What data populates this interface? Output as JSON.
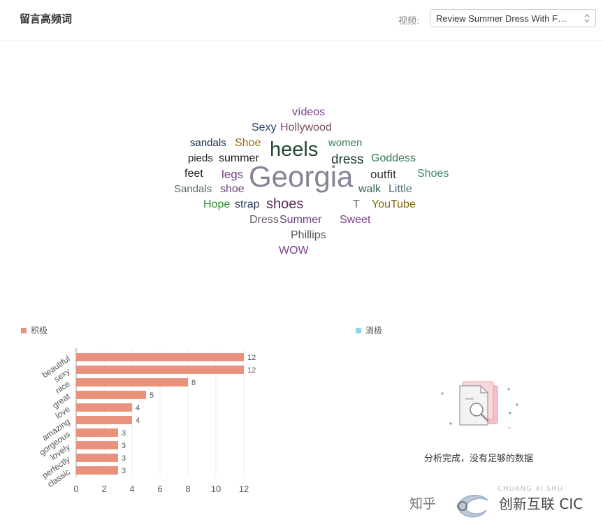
{
  "header": {
    "title": "留言高频词",
    "video_label": "视频:",
    "video_selected": "Review Summer Dress With F…"
  },
  "word_cloud": [
    {
      "text": "vídeos",
      "color": "#7b3f8c"
    },
    {
      "text": "Sexy",
      "color": "#2b3a67"
    },
    {
      "text": "Hollywood",
      "color": "#7a4b63"
    },
    {
      "text": "sandals",
      "color": "#1a2a4a"
    },
    {
      "text": "Shoe",
      "color": "#9a6b10"
    },
    {
      "text": "heels",
      "color": "#244a30"
    },
    {
      "text": "women",
      "color": "#3e7a52"
    },
    {
      "text": "pieds",
      "color": "#222222"
    },
    {
      "text": "summer",
      "color": "#1a1a1a"
    },
    {
      "text": "dress",
      "color": "#153a24"
    },
    {
      "text": "Goddess",
      "color": "#357a52"
    },
    {
      "text": "feet",
      "color": "#222222"
    },
    {
      "text": "legs",
      "color": "#7b3f8c"
    },
    {
      "text": "Georgia",
      "color": "#8a8296"
    },
    {
      "text": "outfit",
      "color": "#333333"
    },
    {
      "text": "Shoes",
      "color": "#3e8a70"
    },
    {
      "text": "Sandals",
      "color": "#5a6a6a"
    },
    {
      "text": "shoe",
      "color": "#6a3f7a"
    },
    {
      "text": "walk",
      "color": "#35665a"
    },
    {
      "text": "Little",
      "color": "#4f6e78"
    },
    {
      "text": "Hope",
      "color": "#2e8a2e"
    },
    {
      "text": "strap",
      "color": "#2b3a5a"
    },
    {
      "text": "shoes",
      "color": "#5a2a5a"
    },
    {
      "text": "T",
      "color": "#6a6a6a"
    },
    {
      "text": "YouTube",
      "color": "#7a6a08"
    },
    {
      "text": "Dress",
      "color": "#6a5a6a"
    },
    {
      "text": "Summer",
      "color": "#6a3f7a"
    },
    {
      "text": "Sweet",
      "color": "#7b3f8c"
    },
    {
      "text": "Phillips",
      "color": "#555555"
    },
    {
      "text": "WOW",
      "color": "#7b3f8c"
    }
  ],
  "legend": {
    "positive": "积极",
    "negative": "消极",
    "positive_color": "#e8927c",
    "negative_color": "#8fd4e6"
  },
  "chart_data": {
    "type": "bar",
    "orientation": "horizontal",
    "categories": [
      "beautiful",
      "sexy",
      "nice",
      "great",
      "love",
      "amazing",
      "gorgeous",
      "lovely",
      "perfectly",
      "classic"
    ],
    "values": [
      12,
      12,
      8,
      5,
      4,
      4,
      3,
      3,
      3,
      3
    ],
    "series": [
      {
        "name": "积极",
        "values": [
          12,
          12,
          8,
          5,
          4,
          4,
          3,
          3,
          3,
          3
        ]
      }
    ],
    "xlim": [
      0,
      12
    ],
    "xticks": [
      0,
      2,
      4,
      6,
      8,
      10,
      12
    ],
    "bar_color": "#e8927c",
    "grid": true
  },
  "negative_panel": {
    "empty_message": "分析完成，没有足够的数据"
  },
  "watermark": {
    "zhihu": "知乎",
    "brand_latin": "CHUANG XI SHU",
    "brand_text": "创新互联 CIC"
  }
}
